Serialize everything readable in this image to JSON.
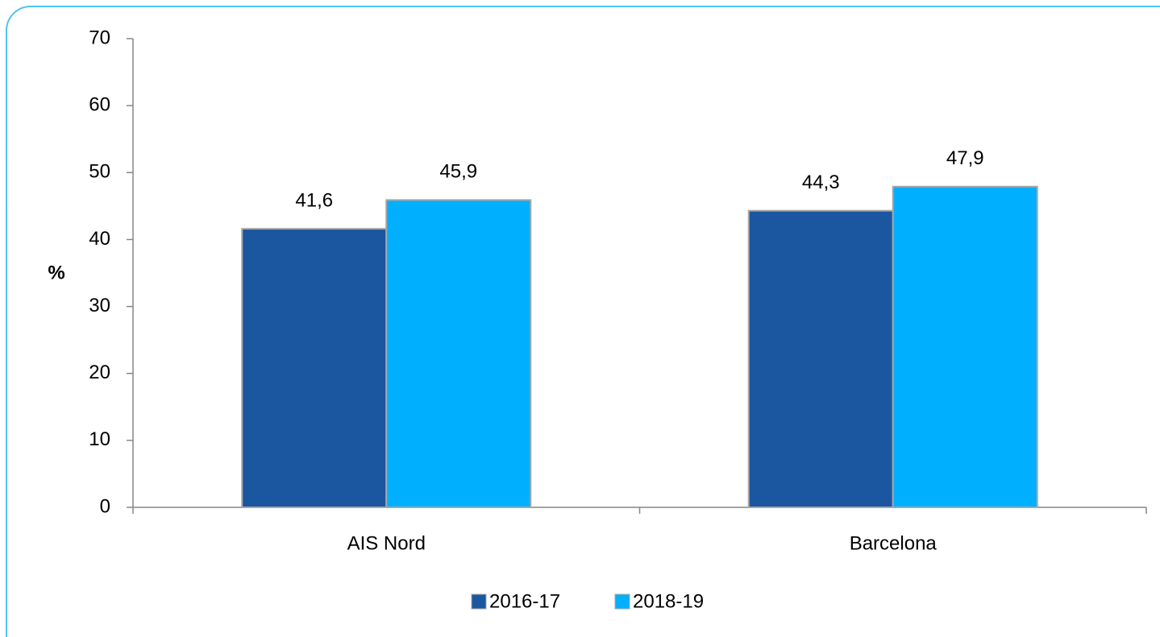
{
  "chart_data": {
    "type": "bar",
    "y_label": "%",
    "categories": [
      "AIS Nord",
      "Barcelona"
    ],
    "series": [
      {
        "name": "2016-17",
        "color": "#1b56a0",
        "values": [
          41.6,
          44.3
        ],
        "value_labels": [
          "41,6",
          "44,3"
        ]
      },
      {
        "name": "2018-19",
        "color": "#00b0ff",
        "values": [
          45.9,
          47.9
        ],
        "value_labels": [
          "45,9",
          "47,9"
        ]
      }
    ],
    "ylim": [
      0,
      70
    ],
    "yticks": [
      0,
      10,
      20,
      30,
      40,
      50,
      60,
      70
    ],
    "grid": false,
    "legend": "bottom"
  }
}
